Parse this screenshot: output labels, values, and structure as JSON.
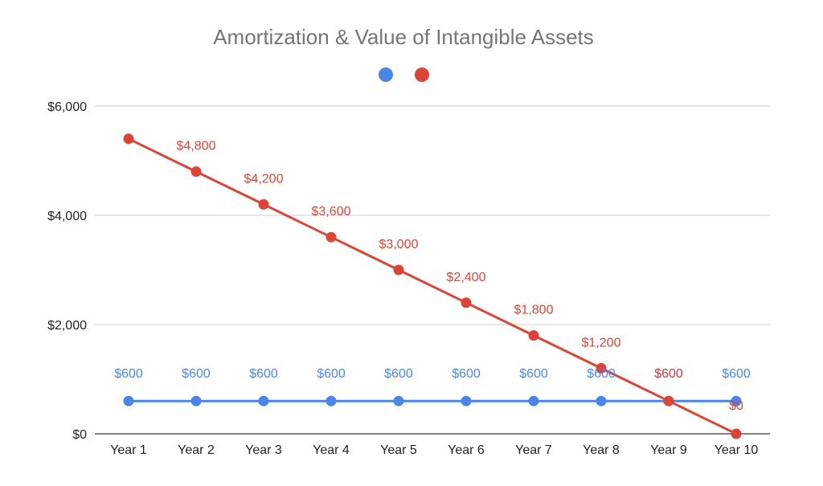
{
  "chart_data": {
    "type": "line",
    "title": "Amortization & Value of Intangible Assets",
    "xlabel": "",
    "ylabel": "",
    "categories": [
      "Year 1",
      "Year 2",
      "Year 3",
      "Year 4",
      "Year 5",
      "Year 6",
      "Year 7",
      "Year 8",
      "Year 9",
      "Year 10"
    ],
    "ylim": [
      0,
      6000
    ],
    "yticks": [
      0,
      2000,
      4000,
      6000
    ],
    "ytick_labels": [
      "$0",
      "$2,000",
      "$4,000",
      "$6,000"
    ],
    "grid": true,
    "legend": "top",
    "series": [
      {
        "color": "#4a86e8",
        "values": [
          600,
          600,
          600,
          600,
          600,
          600,
          600,
          600,
          600,
          600
        ],
        "labels": [
          "$600",
          "$600",
          "$600",
          "$600",
          "$600",
          "$600",
          "$600",
          "$600",
          "$600",
          "$600"
        ]
      },
      {
        "color": "#db4437",
        "values": [
          5400,
          4800,
          4200,
          3600,
          3000,
          2400,
          1800,
          1200,
          600,
          0
        ],
        "labels": [
          "",
          "$4,800",
          "$4,200",
          "$3,600",
          "$3,000",
          "$2,400",
          "$1,800",
          "$1,200",
          "$600",
          "$0"
        ]
      }
    ]
  }
}
